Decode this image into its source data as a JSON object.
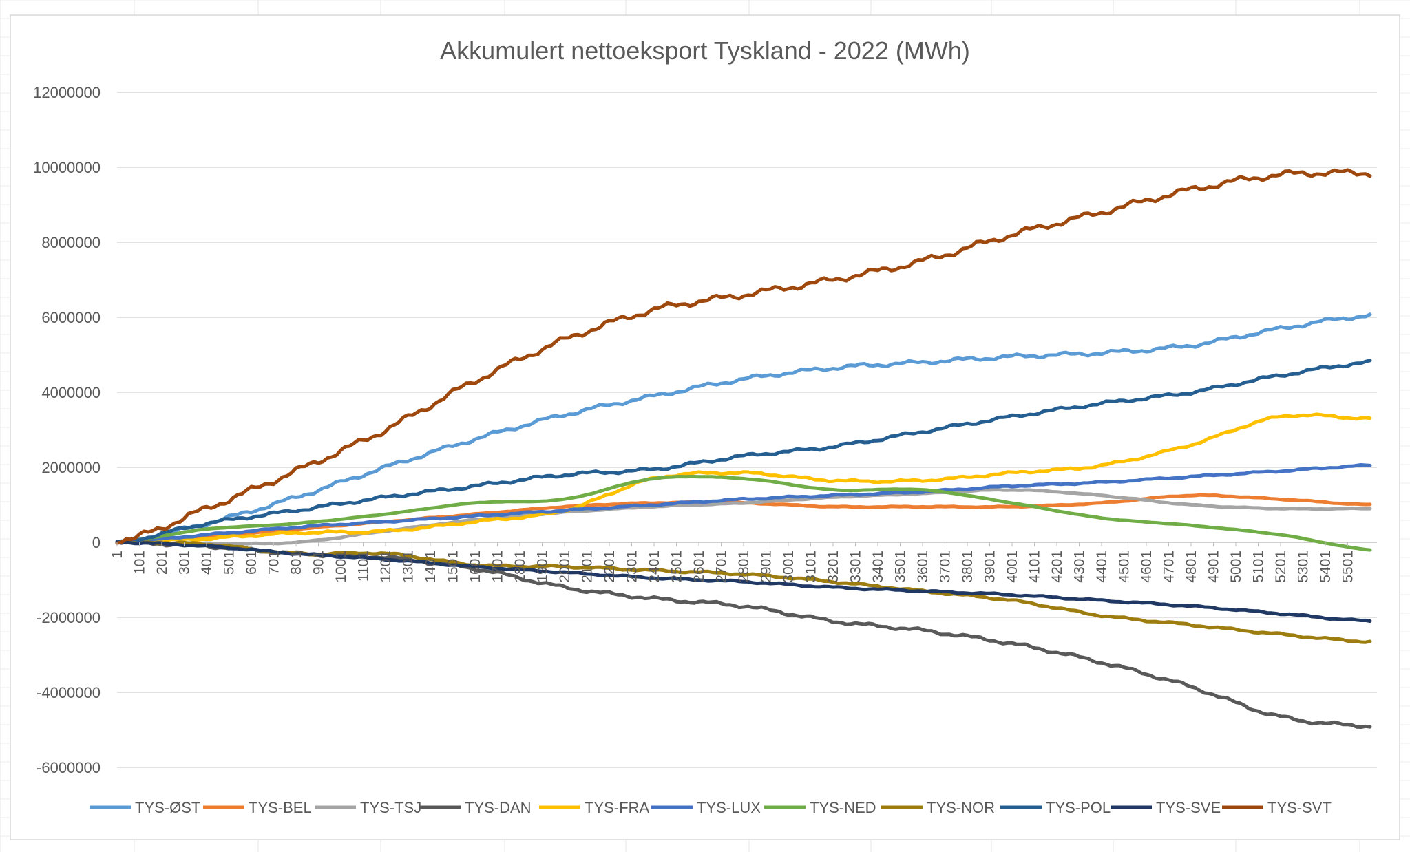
{
  "chart_data": {
    "type": "line",
    "title": "Akkumulert nettoeksport Tyskland - 2022 (MWh)",
    "xlabel": "",
    "ylabel": "",
    "ylim": [
      -6000000,
      12000000
    ],
    "y_ticks": [
      12000000,
      10000000,
      8000000,
      6000000,
      4000000,
      2000000,
      0,
      -2000000,
      -4000000,
      -6000000
    ],
    "y_tick_labels": [
      "12000000",
      "10000000",
      "8000000",
      "6000000",
      "4000000",
      "2000000",
      "0",
      "-2000000",
      "-4000000",
      "-6000000"
    ],
    "x_range": [
      1,
      5601
    ],
    "x_tick_labels": [
      "1",
      "101",
      "201",
      "301",
      "401",
      "501",
      "601",
      "701",
      "801",
      "901",
      "1001",
      "1101",
      "1201",
      "1301",
      "1401",
      "1501",
      "1601",
      "1701",
      "1801",
      "1901",
      "2001",
      "2101",
      "2201",
      "2301",
      "2401",
      "2501",
      "2601",
      "2701",
      "2801",
      "2901",
      "3001",
      "3101",
      "3201",
      "3301",
      "3401",
      "3501",
      "3601",
      "3701",
      "3801",
      "3901",
      "4001",
      "4101",
      "4201",
      "4301",
      "4401",
      "4501",
      "4601",
      "4701",
      "4801",
      "4901",
      "5001",
      "5101",
      "5201",
      "5301",
      "5401",
      "5501"
    ],
    "grid": "horizontal",
    "legend_position": "bottom",
    "x": [
      1,
      400,
      800,
      1200,
      1600,
      2000,
      2400,
      2800,
      3200,
      3600,
      4000,
      4400,
      4800,
      5200,
      5601
    ],
    "series": [
      {
        "name": "TYS-ØST",
        "color": "#5B9BD5",
        "values": [
          0,
          500000,
          1200000,
          2000000,
          2750000,
          3400000,
          3900000,
          4350000,
          4650000,
          4800000,
          4950000,
          5050000,
          5250000,
          5700000,
          6050000
        ]
      },
      {
        "name": "TYS-BEL",
        "color": "#ED7D31",
        "values": [
          0,
          150000,
          350000,
          550000,
          750000,
          950000,
          1050000,
          1050000,
          950000,
          950000,
          950000,
          1050000,
          1250000,
          1150000,
          1000000
        ]
      },
      {
        "name": "TYS-TSJ",
        "color": "#A5A5A5",
        "values": [
          0,
          -30000,
          0,
          300000,
          600000,
          800000,
          950000,
          1050000,
          1200000,
          1300000,
          1400000,
          1250000,
          1000000,
          900000,
          900000
        ]
      },
      {
        "name": "TYS-DAN",
        "color": "#595959",
        "values": [
          0,
          -100000,
          -300000,
          -400000,
          -700000,
          -1200000,
          -1500000,
          -1700000,
          -2100000,
          -2350000,
          -2700000,
          -3200000,
          -3850000,
          -4650000,
          -4900000
        ]
      },
      {
        "name": "TYS-FRA",
        "color": "#FFC000",
        "values": [
          0,
          100000,
          250000,
          300000,
          550000,
          850000,
          1700000,
          1850000,
          1650000,
          1650000,
          1850000,
          2050000,
          2600000,
          3350000,
          3300000
        ]
      },
      {
        "name": "TYS-LUX",
        "color": "#4472C4",
        "values": [
          0,
          200000,
          400000,
          550000,
          700000,
          850000,
          1000000,
          1150000,
          1250000,
          1350000,
          1500000,
          1600000,
          1750000,
          1900000,
          2050000
        ]
      },
      {
        "name": "TYS-NED",
        "color": "#70AD47",
        "values": [
          0,
          350000,
          500000,
          750000,
          1050000,
          1150000,
          1700000,
          1700000,
          1400000,
          1400000,
          1050000,
          650000,
          450000,
          200000,
          -200000
        ]
      },
      {
        "name": "TYS-NOR",
        "color": "#9E7D10",
        "values": [
          0,
          -50000,
          -300000,
          -300000,
          -600000,
          -650000,
          -750000,
          -850000,
          -1050000,
          -1300000,
          -1550000,
          -1950000,
          -2200000,
          -2450000,
          -2650000
        ]
      },
      {
        "name": "TYS-POL",
        "color": "#255E91",
        "values": [
          0,
          500000,
          850000,
          1200000,
          1500000,
          1800000,
          1950000,
          2300000,
          2550000,
          2950000,
          3350000,
          3700000,
          4000000,
          4450000,
          4800000
        ]
      },
      {
        "name": "TYS-SVE",
        "color": "#203864",
        "values": [
          0,
          -100000,
          -300000,
          -450000,
          -650000,
          -800000,
          -950000,
          -1050000,
          -1200000,
          -1300000,
          -1400000,
          -1550000,
          -1700000,
          -1900000,
          -2100000
        ]
      },
      {
        "name": "TYS-SVT",
        "color": "#9E480E",
        "values": [
          0,
          900000,
          1900000,
          3000000,
          4300000,
          5400000,
          6200000,
          6600000,
          7000000,
          7500000,
          8200000,
          8800000,
          9400000,
          9800000,
          9850000
        ]
      }
    ]
  }
}
